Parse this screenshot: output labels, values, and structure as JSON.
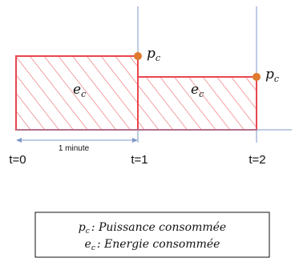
{
  "diagram": {
    "power_label": "p",
    "power_sub": "c",
    "energy_label": "e",
    "energy_sub": "c",
    "t_labels": [
      "t=0",
      "t=1",
      "t=2"
    ],
    "interval_label": "1 minute",
    "legend": {
      "line1_symbol": "p",
      "line1_sub": "c",
      "line1_text": ": Puissance consommée",
      "line2_symbol": "e",
      "line2_sub": "c",
      "line2_text": ": Energie consommée"
    },
    "colors": {
      "block": "#e8474f",
      "axis": "#7d97c7",
      "point": "#e07a2e",
      "text": "#111111"
    }
  }
}
